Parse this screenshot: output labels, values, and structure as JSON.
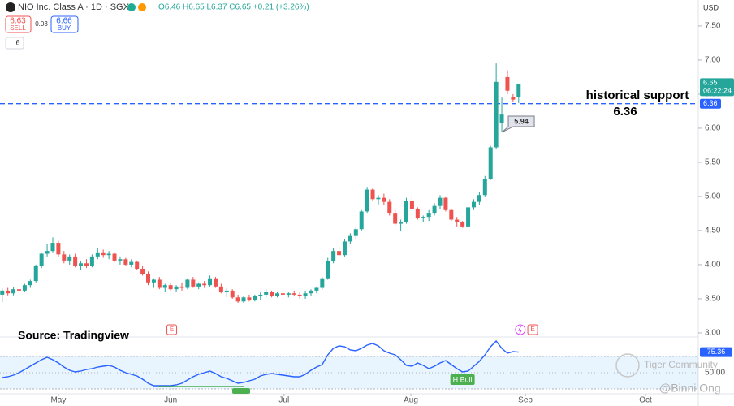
{
  "header": {
    "symbol": "NIO Inc. Class A · 1D · SGX",
    "ohlc_text": "O6.46 H6.65 L6.37 C6.65 +0.21 (+3.26%)",
    "sell_price": "6.63",
    "sell_label": "SELL",
    "spread": "0.03",
    "buy_price": "6.66",
    "buy_label": "BUY",
    "indicator_count": "6",
    "currency": "USD",
    "time_left": "06:22:24"
  },
  "chart_data": {
    "type": "candlestick",
    "up_color": "#26a69a",
    "down_color": "#ef5350",
    "x": [
      0,
      1,
      2,
      3,
      4,
      5,
      6,
      7,
      8,
      9,
      10,
      11,
      12,
      13,
      14,
      15,
      16,
      17,
      18,
      19,
      20,
      21,
      22,
      23,
      24,
      25,
      26,
      27,
      28,
      29,
      30,
      31,
      32,
      33,
      34,
      35,
      36,
      37,
      38,
      39,
      40,
      41,
      42,
      43,
      44,
      45,
      46,
      47,
      48,
      49,
      50,
      51,
      52,
      53,
      54,
      55,
      56,
      57,
      58,
      59,
      60,
      61,
      62,
      63,
      64,
      65,
      66,
      67,
      68,
      69,
      70,
      71,
      72,
      73,
      74,
      75,
      76,
      77,
      78,
      79,
      80,
      81,
      82,
      83,
      84,
      85,
      86,
      87,
      88,
      89,
      90,
      91,
      92
    ],
    "ohlc": [
      [
        3.56,
        3.65,
        3.45,
        3.62
      ],
      [
        3.62,
        3.66,
        3.55,
        3.58
      ],
      [
        3.58,
        3.67,
        3.55,
        3.64
      ],
      [
        3.64,
        3.7,
        3.6,
        3.62
      ],
      [
        3.62,
        3.72,
        3.6,
        3.7
      ],
      [
        3.7,
        3.78,
        3.66,
        3.76
      ],
      [
        3.76,
        4.0,
        3.74,
        3.98
      ],
      [
        3.98,
        4.18,
        3.95,
        4.16
      ],
      [
        4.16,
        4.3,
        4.12,
        4.2
      ],
      [
        4.2,
        4.4,
        4.18,
        4.32
      ],
      [
        4.32,
        4.35,
        4.12,
        4.15
      ],
      [
        4.15,
        4.2,
        4.02,
        4.06
      ],
      [
        4.06,
        4.15,
        4.0,
        4.12
      ],
      [
        4.12,
        4.16,
        3.96,
        3.98
      ],
      [
        3.98,
        4.06,
        3.92,
        4.02
      ],
      [
        4.02,
        4.08,
        3.95,
        3.98
      ],
      [
        3.98,
        4.15,
        3.96,
        4.12
      ],
      [
        4.12,
        4.25,
        4.08,
        4.18
      ],
      [
        4.18,
        4.22,
        4.1,
        4.14
      ],
      [
        4.14,
        4.2,
        4.08,
        4.16
      ],
      [
        4.16,
        4.18,
        4.04,
        4.06
      ],
      [
        4.06,
        4.12,
        4.0,
        4.08
      ],
      [
        4.08,
        4.1,
        3.98,
        4.0
      ],
      [
        4.0,
        4.08,
        3.96,
        4.04
      ],
      [
        4.04,
        4.06,
        3.92,
        3.94
      ],
      [
        3.94,
        3.98,
        3.84,
        3.86
      ],
      [
        3.86,
        3.9,
        3.7,
        3.74
      ],
      [
        3.74,
        3.8,
        3.66,
        3.78
      ],
      [
        3.78,
        3.82,
        3.64,
        3.66
      ],
      [
        3.66,
        3.72,
        3.6,
        3.7
      ],
      [
        3.7,
        3.74,
        3.62,
        3.64
      ],
      [
        3.64,
        3.7,
        3.6,
        3.68
      ],
      [
        3.68,
        3.74,
        3.62,
        3.66
      ],
      [
        3.66,
        3.8,
        3.64,
        3.78
      ],
      [
        3.78,
        3.82,
        3.66,
        3.68
      ],
      [
        3.68,
        3.74,
        3.64,
        3.72
      ],
      [
        3.72,
        3.76,
        3.66,
        3.7
      ],
      [
        3.7,
        3.84,
        3.68,
        3.8
      ],
      [
        3.8,
        3.82,
        3.66,
        3.68
      ],
      [
        3.68,
        3.72,
        3.58,
        3.6
      ],
      [
        3.6,
        3.66,
        3.52,
        3.62
      ],
      [
        3.62,
        3.64,
        3.5,
        3.52
      ],
      [
        3.52,
        3.56,
        3.44,
        3.46
      ],
      [
        3.46,
        3.54,
        3.44,
        3.52
      ],
      [
        3.52,
        3.56,
        3.46,
        3.48
      ],
      [
        3.48,
        3.56,
        3.46,
        3.54
      ],
      [
        3.54,
        3.6,
        3.48,
        3.56
      ],
      [
        3.56,
        3.64,
        3.52,
        3.6
      ],
      [
        3.6,
        3.62,
        3.52,
        3.54
      ],
      [
        3.54,
        3.6,
        3.52,
        3.58
      ],
      [
        3.58,
        3.62,
        3.54,
        3.56
      ],
      [
        3.56,
        3.6,
        3.52,
        3.58
      ],
      [
        3.58,
        3.62,
        3.54,
        3.56
      ],
      [
        3.56,
        3.6,
        3.5,
        3.54
      ],
      [
        3.54,
        3.62,
        3.5,
        3.58
      ],
      [
        3.58,
        3.64,
        3.54,
        3.62
      ],
      [
        3.62,
        3.68,
        3.58,
        3.66
      ],
      [
        3.66,
        3.82,
        3.64,
        3.8
      ],
      [
        3.8,
        4.1,
        3.78,
        4.05
      ],
      [
        4.05,
        4.25,
        4.02,
        4.2
      ],
      [
        4.2,
        4.26,
        4.08,
        4.14
      ],
      [
        4.14,
        4.38,
        4.12,
        4.34
      ],
      [
        4.34,
        4.46,
        4.3,
        4.42
      ],
      [
        4.42,
        4.56,
        4.38,
        4.52
      ],
      [
        4.52,
        4.8,
        4.5,
        4.78
      ],
      [
        4.78,
        5.14,
        4.76,
        5.1
      ],
      [
        5.1,
        5.12,
        4.94,
        4.96
      ],
      [
        4.96,
        5.02,
        4.88,
        4.98
      ],
      [
        4.98,
        5.04,
        4.88,
        4.92
      ],
      [
        4.92,
        4.96,
        4.72,
        4.76
      ],
      [
        4.76,
        4.8,
        4.58,
        4.6
      ],
      [
        4.6,
        4.66,
        4.5,
        4.62
      ],
      [
        4.62,
        4.98,
        4.6,
        4.94
      ],
      [
        4.94,
        5.02,
        4.8,
        4.82
      ],
      [
        4.82,
        4.84,
        4.66,
        4.68
      ],
      [
        4.68,
        4.72,
        4.62,
        4.7
      ],
      [
        4.7,
        4.8,
        4.64,
        4.76
      ],
      [
        4.76,
        4.9,
        4.72,
        4.86
      ],
      [
        4.86,
        5.02,
        4.82,
        4.98
      ],
      [
        4.98,
        5.0,
        4.78,
        4.8
      ],
      [
        4.8,
        4.82,
        4.64,
        4.66
      ],
      [
        4.66,
        4.7,
        4.56,
        4.62
      ],
      [
        4.62,
        4.64,
        4.54,
        4.56
      ],
      [
        4.56,
        4.86,
        4.54,
        4.84
      ],
      [
        4.84,
        4.96,
        4.8,
        4.92
      ],
      [
        4.92,
        5.06,
        4.88,
        5.02
      ],
      [
        5.02,
        5.3,
        5.0,
        5.26
      ],
      [
        5.26,
        5.74,
        5.24,
        5.72
      ],
      [
        5.72,
        6.95,
        5.7,
        6.68
      ],
      [
        6.08,
        6.45,
        5.94,
        6.2
      ],
      [
        6.75,
        6.85,
        6.5,
        6.55
      ],
      [
        6.46,
        6.5,
        6.38,
        6.42
      ],
      [
        6.46,
        6.65,
        6.37,
        6.65
      ]
    ],
    "xlim": [
      -0.4,
      124
    ],
    "xticks": [
      {
        "value": 10,
        "label": "May"
      },
      {
        "value": 30,
        "label": "Jun"
      },
      {
        "value": 50.2,
        "label": "Jul"
      },
      {
        "value": 72.8,
        "label": "Aug"
      },
      {
        "value": 93.2,
        "label": "Sep"
      },
      {
        "value": 114.6,
        "label": "Oct"
      }
    ],
    "ylim": [
      2.94,
      7.88
    ],
    "yticks": [
      {
        "value": 3,
        "label": "3.00"
      },
      {
        "value": 3.5,
        "label": "3.50"
      },
      {
        "value": 4,
        "label": "4.00"
      },
      {
        "value": 4.5,
        "label": "4.50"
      },
      {
        "value": 5,
        "label": "5.00"
      },
      {
        "value": 5.5,
        "label": "5.50"
      },
      {
        "value": 6,
        "label": "6.00"
      },
      {
        "value": 6.5,
        "label": "6.50"
      },
      {
        "value": 7,
        "label": "7.00"
      },
      {
        "value": 7.5,
        "label": "7.50"
      }
    ],
    "support_level": 6.36,
    "support_label": "historical support",
    "support_color": "#2962ff",
    "source": "Source: Tradingview",
    "event_label": "E",
    "indicator": {
      "color": "#2962ff",
      "band": [
        30,
        70
      ],
      "ylim": [
        24,
        94
      ],
      "yticks": [
        {
          "value": 50,
          "label": "50.00"
        }
      ],
      "last_label": "75.36",
      "signal_label": "H Bull",
      "values": [
        44,
        45,
        47,
        50,
        54,
        58,
        62,
        66,
        69,
        66,
        62,
        57,
        53,
        51,
        52,
        54,
        55,
        57,
        58,
        59,
        57,
        53,
        50,
        48,
        46,
        42,
        37,
        34,
        34,
        34,
        34,
        35,
        37,
        41,
        45,
        48,
        50,
        52,
        49,
        45,
        43,
        40,
        37,
        38,
        40,
        42,
        46,
        48,
        49,
        48,
        47,
        46,
        45,
        45,
        48,
        53,
        57,
        60,
        72,
        80,
        83,
        82,
        78,
        77,
        80,
        84,
        86,
        83,
        77,
        74,
        72,
        66,
        59,
        58,
        62,
        59,
        55,
        58,
        62,
        65,
        60,
        55,
        51,
        52,
        58,
        64,
        72,
        82,
        89,
        80,
        74,
        76,
        75.36
      ]
    },
    "watermark": "Tiger Community",
    "author": "@Binni Ong"
  }
}
